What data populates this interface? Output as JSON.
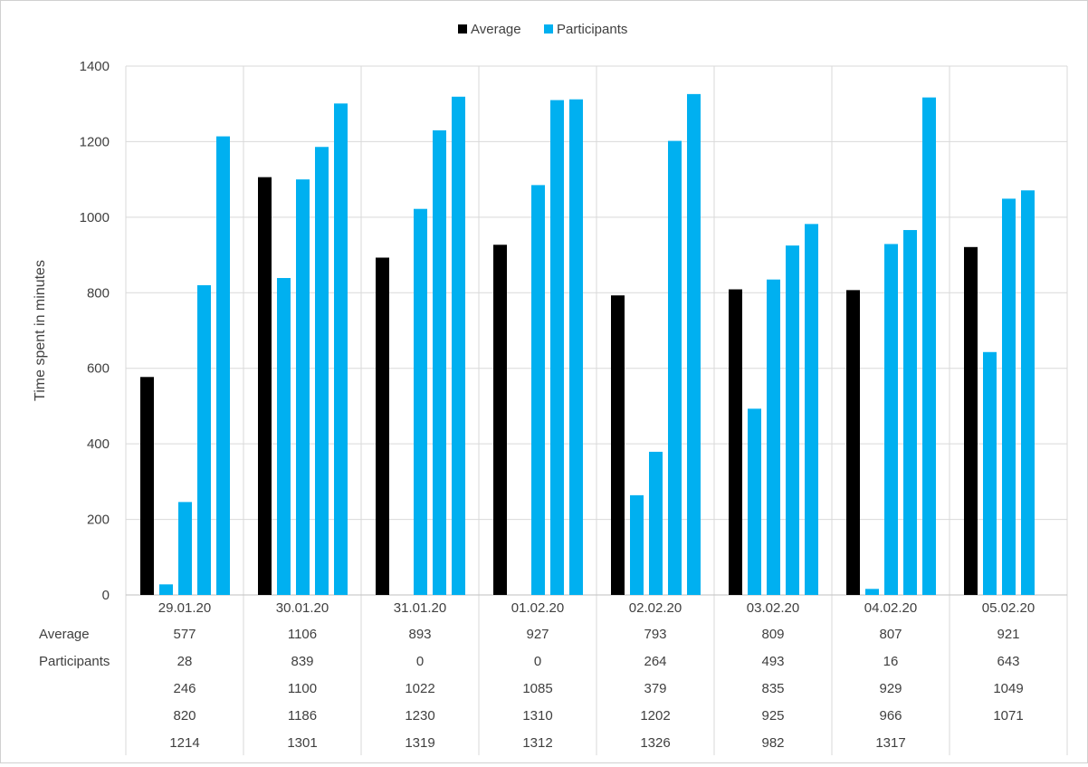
{
  "chart_data": {
    "type": "bar",
    "title": "",
    "xlabel": "",
    "ylabel": "Time spent in minutes",
    "ylim": [
      0,
      1400
    ],
    "yticks": [
      0,
      200,
      400,
      600,
      800,
      1000,
      1200,
      1400
    ],
    "grid": true,
    "legend_position": "top-center",
    "colors": {
      "Average": "#000000",
      "Participants": "#00B0F0",
      "grid": "#d9d9d9",
      "axis": "#bfbfbf",
      "text": "#404040"
    },
    "legend": [
      "Average",
      "Participants"
    ],
    "categories": [
      "29.01.20",
      "30.01.20",
      "31.01.20",
      "01.02.20",
      "02.02.20",
      "03.02.20",
      "04.02.20",
      "05.02.20"
    ],
    "groups": [
      {
        "category": "29.01.20",
        "average": 577,
        "participants": [
          28,
          246,
          820,
          1214
        ]
      },
      {
        "category": "30.01.20",
        "average": 1106,
        "participants": [
          839,
          1100,
          1186,
          1301
        ]
      },
      {
        "category": "31.01.20",
        "average": 893,
        "participants": [
          0,
          1022,
          1230,
          1319
        ]
      },
      {
        "category": "01.02.20",
        "average": 927,
        "participants": [
          0,
          1085,
          1310,
          1312
        ]
      },
      {
        "category": "02.02.20",
        "average": 793,
        "participants": [
          264,
          379,
          1202,
          1326
        ]
      },
      {
        "category": "03.02.20",
        "average": 809,
        "participants": [
          493,
          835,
          925,
          982
        ]
      },
      {
        "category": "04.02.20",
        "average": 807,
        "participants": [
          16,
          929,
          966,
          1317
        ]
      },
      {
        "category": "05.02.20",
        "average": 921,
        "participants": [
          643,
          1049,
          1071
        ]
      }
    ],
    "table_row_labels": [
      "Average",
      "Participants"
    ]
  }
}
